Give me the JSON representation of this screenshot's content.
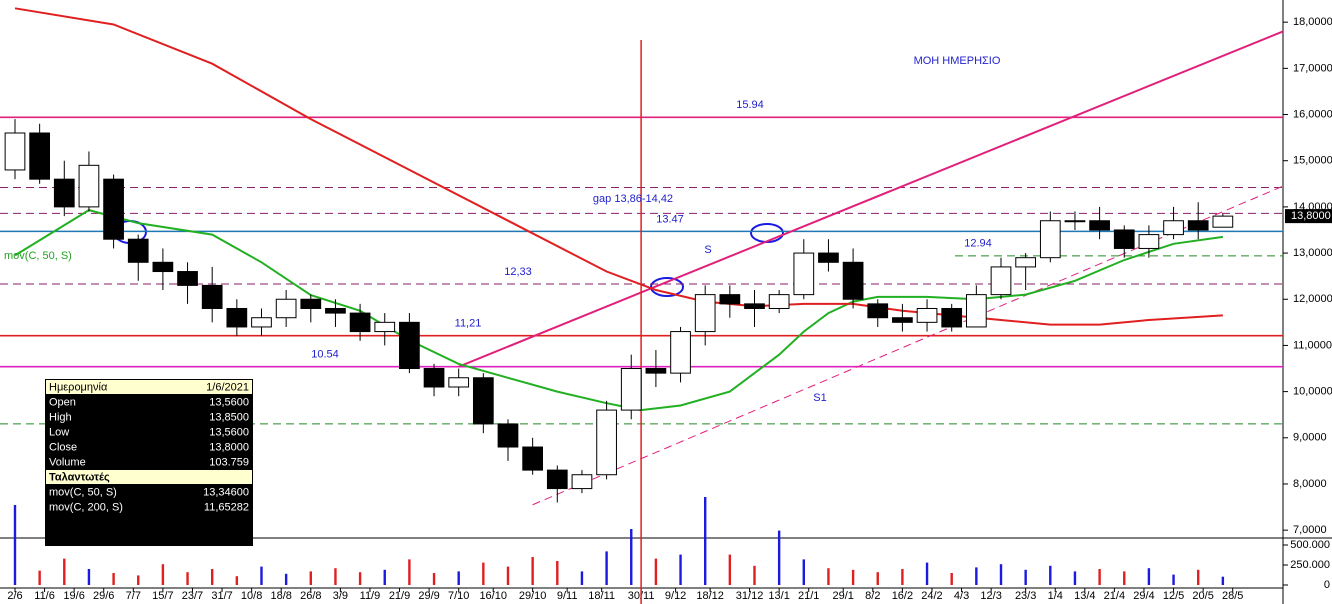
{
  "chart_data": {
    "type": "candlestick",
    "xlim": [
      -3.04,
      257.2
    ],
    "xticks": [
      {
        "value": 0,
        "label": "2/6"
      },
      {
        "value": 6,
        "label": "11/6"
      },
      {
        "value": 12,
        "label": "19/6"
      },
      {
        "value": 18,
        "label": "29/6"
      },
      {
        "value": 24,
        "label": "7/7"
      },
      {
        "value": 30,
        "label": "15/7"
      },
      {
        "value": 36,
        "label": "23/7"
      },
      {
        "value": 42,
        "label": "31/7"
      },
      {
        "value": 48,
        "label": "10/8"
      },
      {
        "value": 54,
        "label": "18/8"
      },
      {
        "value": 60,
        "label": "26/8"
      },
      {
        "value": 66,
        "label": "3/9"
      },
      {
        "value": 72,
        "label": "11/9"
      },
      {
        "value": 78,
        "label": "21/9"
      },
      {
        "value": 84,
        "label": "29/9"
      },
      {
        "value": 90,
        "label": "7/10"
      },
      {
        "value": 97,
        "label": "16/10"
      },
      {
        "value": 105,
        "label": "29/10"
      },
      {
        "value": 112,
        "label": "9/11"
      },
      {
        "value": 119,
        "label": "18/11"
      },
      {
        "value": 127,
        "label": "30/11"
      },
      {
        "value": 134,
        "label": "9/12"
      },
      {
        "value": 141,
        "label": "18/12"
      },
      {
        "value": 149,
        "label": "31/12"
      },
      {
        "value": 155,
        "label": "13/1"
      },
      {
        "value": 161,
        "label": "21/1"
      },
      {
        "value": 168,
        "label": "29/1"
      },
      {
        "value": 174,
        "label": "8/2"
      },
      {
        "value": 180,
        "label": "16/2"
      },
      {
        "value": 186,
        "label": "24/2"
      },
      {
        "value": 192,
        "label": "4/3"
      },
      {
        "value": 198,
        "label": "12/3"
      },
      {
        "value": 205,
        "label": "23/3"
      },
      {
        "value": 211,
        "label": "1/4"
      },
      {
        "value": 217,
        "label": "13/4"
      },
      {
        "value": 223,
        "label": "21/4"
      },
      {
        "value": 229,
        "label": "29/4"
      },
      {
        "value": 235,
        "label": "12/5"
      },
      {
        "value": 241,
        "label": "20/5"
      },
      {
        "value": 247,
        "label": "28/5"
      }
    ],
    "ylim": [
      6.83,
      18.48
    ],
    "yticks": [
      {
        "value": 7,
        "label": "7,0000"
      },
      {
        "value": 8,
        "label": "8,0000"
      },
      {
        "value": 9,
        "label": "9,0000"
      },
      {
        "value": 10,
        "label": "10,0000"
      },
      {
        "value": 11,
        "label": "11,0000"
      },
      {
        "value": 12,
        "label": "12,0000"
      },
      {
        "value": 13,
        "label": "13,0000"
      },
      {
        "value": 14,
        "label": "14,0000"
      },
      {
        "value": 15,
        "label": "15,0000"
      },
      {
        "value": 16,
        "label": "16,0000"
      },
      {
        "value": 17,
        "label": "17,0000"
      },
      {
        "value": 18,
        "label": "18,0000"
      }
    ],
    "last_price": {
      "value": 13.8,
      "label": "13,8000"
    },
    "x": [
      0,
      5,
      10,
      15,
      20,
      25,
      30,
      35,
      40,
      45,
      50,
      55,
      60,
      65,
      70,
      75,
      80,
      85,
      90,
      95,
      100,
      105,
      110,
      115,
      120,
      125,
      130,
      135,
      140,
      145,
      150,
      155,
      160,
      165,
      170,
      175,
      180,
      185,
      190,
      195,
      200,
      205,
      210,
      215,
      220,
      225,
      230,
      235,
      240,
      245
    ],
    "open": [
      14.8,
      15.6,
      14.6,
      14.0,
      14.6,
      13.3,
      12.8,
      12.6,
      12.3,
      11.8,
      11.4,
      11.6,
      12.0,
      11.8,
      11.7,
      11.3,
      11.5,
      10.5,
      10.1,
      10.3,
      9.3,
      8.8,
      8.3,
      7.9,
      8.2,
      9.6,
      10.5,
      10.4,
      11.3,
      12.1,
      11.9,
      11.8,
      12.1,
      13.0,
      12.8,
      11.9,
      11.6,
      11.5,
      11.8,
      11.4,
      12.1,
      12.7,
      12.9,
      13.7,
      13.7,
      13.5,
      13.1,
      13.4,
      13.7,
      13.56
    ],
    "high": [
      15.9,
      15.8,
      15.0,
      15.2,
      14.7,
      13.4,
      13.1,
      12.8,
      12.7,
      12.0,
      11.8,
      12.2,
      12.1,
      12.0,
      11.9,
      11.7,
      11.7,
      10.6,
      10.5,
      10.4,
      9.4,
      9.0,
      8.4,
      8.3,
      9.8,
      10.8,
      10.9,
      11.4,
      12.3,
      12.3,
      12.2,
      12.2,
      13.3,
      13.3,
      13.1,
      12.0,
      11.9,
      12.0,
      11.9,
      12.3,
      12.9,
      13.0,
      13.9,
      13.9,
      14.0,
      13.6,
      13.6,
      14.0,
      14.1,
      13.85
    ],
    "low": [
      14.6,
      14.5,
      13.8,
      13.9,
      13.1,
      12.4,
      12.2,
      11.9,
      11.5,
      11.2,
      11.2,
      11.4,
      11.5,
      11.4,
      11.1,
      11.0,
      10.4,
      9.9,
      9.9,
      9.1,
      8.5,
      8.2,
      7.6,
      7.8,
      8.1,
      9.4,
      10.1,
      10.2,
      11.0,
      11.6,
      11.4,
      11.7,
      12.0,
      12.6,
      11.8,
      11.4,
      11.3,
      11.3,
      11.3,
      11.4,
      12.0,
      12.2,
      12.8,
      13.5,
      13.3,
      12.9,
      12.9,
      13.3,
      13.3,
      13.56
    ],
    "close": [
      15.6,
      14.6,
      14.0,
      14.9,
      13.3,
      12.8,
      12.6,
      12.3,
      11.8,
      11.4,
      11.6,
      12.0,
      11.8,
      11.7,
      11.3,
      11.5,
      10.5,
      10.1,
      10.3,
      9.3,
      8.8,
      8.3,
      7.9,
      8.2,
      9.6,
      10.5,
      10.4,
      11.3,
      12.1,
      11.9,
      11.8,
      12.1,
      13.0,
      12.8,
      12.0,
      11.6,
      11.5,
      11.8,
      11.4,
      12.1,
      12.7,
      12.9,
      13.7,
      13.7,
      13.5,
      13.1,
      13.4,
      13.7,
      13.5,
      13.8
    ],
    "volume": [
      1000000,
      180000,
      330000,
      200000,
      150000,
      120000,
      260000,
      160000,
      200000,
      110000,
      230000,
      140000,
      170000,
      210000,
      160000,
      190000,
      320000,
      150000,
      170000,
      280000,
      230000,
      350000,
      300000,
      170000,
      420000,
      700000,
      330000,
      380000,
      1100000,
      380000,
      240000,
      680000,
      320000,
      210000,
      190000,
      160000,
      200000,
      280000,
      150000,
      220000,
      260000,
      190000,
      240000,
      170000,
      200000,
      170000,
      210000,
      130000,
      190000,
      103759
    ],
    "vlim": [
      0,
      587500
    ],
    "vticks": [
      {
        "value": 0,
        "label": "0"
      },
      {
        "value": 250000,
        "label": "250.000"
      },
      {
        "value": 500000,
        "label": "500.000"
      }
    ],
    "series": [
      {
        "name": "mov(C, 50, S)",
        "color": "#22b022",
        "x": [
          0,
          15,
          25,
          40,
          50,
          60,
          70,
          80,
          90,
          100,
          110,
          120,
          127,
          135,
          145,
          150,
          155,
          160,
          165,
          170,
          175,
          185,
          195,
          205,
          215,
          225,
          235,
          245
        ],
        "values": [
          12.95,
          13.93,
          13.65,
          13.4,
          12.8,
          12.09,
          11.75,
          11.11,
          10.6,
          10.3,
          10.0,
          9.75,
          9.6,
          9.7,
          10.0,
          10.4,
          10.8,
          11.3,
          11.7,
          11.95,
          12.05,
          12.05,
          12.0,
          12.1,
          12.4,
          12.85,
          13.2,
          13.35
        ]
      },
      {
        "color": "#e02020",
        "x": [
          0,
          20,
          40,
          60,
          80,
          100,
          120,
          130,
          140,
          150,
          160,
          170,
          180,
          190,
          200,
          210,
          220,
          230,
          245
        ],
        "values": [
          18.3,
          17.95,
          17.1,
          15.9,
          14.8,
          13.7,
          12.6,
          12.2,
          11.95,
          11.85,
          11.9,
          11.9,
          11.75,
          11.65,
          11.55,
          11.45,
          11.45,
          11.55,
          11.65
        ]
      }
    ],
    "levels": [
      {
        "value": 15.94,
        "label": "15.94",
        "color": "#e0207a",
        "style": "solid"
      },
      {
        "value": 14.42,
        "color": "#8b1f6b",
        "style": "dashed"
      },
      {
        "value": 13.86,
        "color": "#8b1f6b",
        "style": "dashed"
      },
      {
        "value": 13.47,
        "label": "13.47",
        "color": "#1f78b4",
        "style": "solid"
      },
      {
        "value": 12.33,
        "label": "12,33",
        "color": "#8b1f6b",
        "style": "dashed"
      },
      {
        "value": 11.21,
        "label": "11,21",
        "color": "#e02020",
        "style": "solid"
      },
      {
        "value": 10.54,
        "label": "10.54",
        "color": "#e020c0",
        "style": "solid"
      },
      {
        "value": 12.94,
        "label": "12.94",
        "color": "#228b22",
        "style": "dashed"
      },
      {
        "value": 9.3,
        "color": "#228b22",
        "style": "dashed"
      }
    ],
    "trendlines": [
      {
        "x": [
          90,
          257.2
        ],
        "values": [
          10.54,
          17.8
        ],
        "color": "#e0207a",
        "style": "solid",
        "label": "S"
      },
      {
        "x": [
          105,
          257.2
        ],
        "values": [
          7.55,
          14.45
        ],
        "color": "#e0207a",
        "style": "dashed",
        "label": "S1"
      }
    ],
    "cursor_x": 127,
    "annotations": [
      "ΜΟΗ ΗΜΕΡΗΣΙΟ",
      "gap 13,86-14,42"
    ],
    "info_box": {
      "header": [
        "Ημερομηνία",
        "1/6/2021"
      ],
      "rows": [
        [
          "Open",
          "13,5600"
        ],
        [
          "High",
          "13,8500"
        ],
        [
          "Low",
          "13,5600"
        ],
        [
          "Close",
          "13,8000"
        ],
        [
          "Volume",
          "103.759"
        ]
      ],
      "section": "Ταλαντωτές",
      "indicators": [
        [
          "mov(C, 50, S)",
          "13,34600"
        ],
        [
          "mov(C, 200, S)",
          "11,65282"
        ]
      ]
    }
  }
}
